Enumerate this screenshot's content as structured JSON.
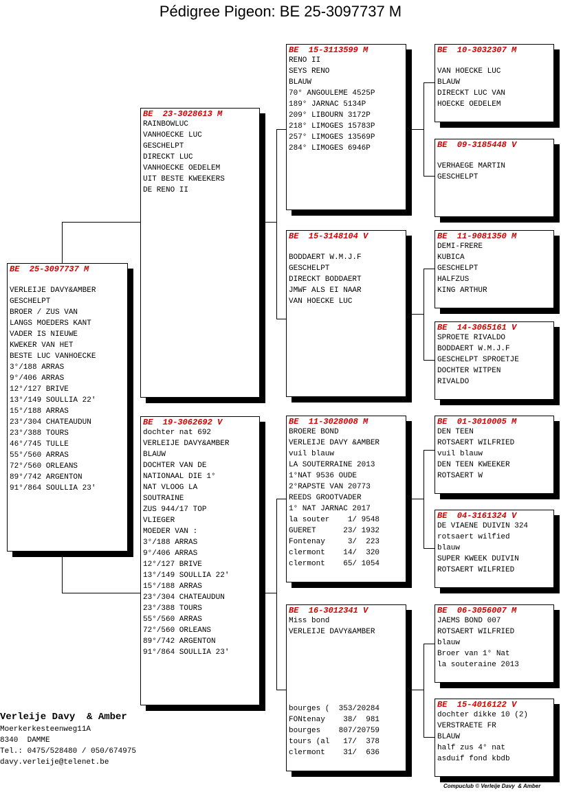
{
  "title": "Pédigree Pigeon: BE  25-3097737 M",
  "subject": {
    "code": "BE  25-3097737 M",
    "lines": [
      "",
      "VERLEIJE DAVY&AMBER",
      "GESCHELPT",
      "BROER / ZUS VAN",
      "LANGS MOEDERS KANT",
      "VADER IS NIEUWE",
      "KWEKER VAN HET",
      "BESTE LUC VANHOECKE",
      "3°/188 ARRAS",
      "9°/406 ARRAS",
      "12°/127 BRIVE",
      "13°/149 SOULLIA 22'",
      "15°/188 ARRAS",
      "23°/304 CHATEAUDUN",
      "23°/388 TOURS",
      "46°/745 TULLE",
      "55°/560 ARRAS",
      "72°/560 ORLEANS",
      "89°/742 ARGENTON",
      "91°/864 SOULLIA 23'"
    ]
  },
  "sire": {
    "code": "BE  23-3028613 M",
    "lines": [
      "RAINBOWLUC",
      "VANHOECKE LUC",
      "GESCHELPT",
      "DIRECKT LUC",
      "VANHOECKE OEDELEM",
      "UIT BESTE KWEEKERS",
      "DE RENO II"
    ]
  },
  "dam": {
    "code": "BE  19-3062692 V",
    "lines": [
      "dochter nat 692",
      "VERLEIJE DAVY&AMBER",
      "BLAUW",
      "DOCHTER VAN DE",
      "NATIONAAL DIE 1°",
      "NAT VLOOG LA",
      "SOUTRAINE",
      "ZUS 944/17 TOP",
      "VLIEGER",
      "MOEDER VAN :",
      "3°/188 ARRAS",
      "9°/406 ARRAS",
      "12°/127 BRIVE",
      "13°/149 SOULLIA 22'",
      "15°/188 ARRAS",
      "23°/304 CHATEAUDUN",
      "23°/388 TOURS",
      "55°/560 ARRAS",
      "72°/560 ORLEANS",
      "89°/742 ARGENTON",
      "91°/864 SOULLIA 23'"
    ]
  },
  "sire_sire": {
    "code": "BE  15-3113599 M",
    "lines": [
      "RENO II",
      "SEYS RENO",
      "BLAUW",
      "70° ANGOULEME 4525P",
      "189° JARNAC 5134P",
      "209° LIBOURN 3172P",
      "218° LIMOGES 15783P",
      "257° LIMOGES 13569P",
      "284° LIMOGES 6946P"
    ]
  },
  "sire_dam": {
    "code": "BE  15-3148104 V",
    "lines": [
      "",
      "BODDAERT W.M.J.F",
      "GESCHELPT",
      "DIRECKT BODDAERT",
      "JMWF ALS EI NAAR",
      "VAN HOECKE LUC"
    ]
  },
  "dam_sire": {
    "code": "BE  11-3028008 M",
    "lines": [
      "BROERE BOND",
      "VERLEIJE DAVY &AMBER",
      "vuil blauw",
      "LA SOUTERRAINE 2013",
      "1°NAT 9536 OUDE",
      "2°RAPSTE VAN 20773",
      "REEDS GROOTVADER",
      "1° NAT JARNAC 2017",
      "la souter    1/ 9548",
      "GUERET      23/ 1932",
      "Fontenay     3/  223",
      "clermont    14/  320",
      "clermont    65/ 1054"
    ]
  },
  "dam_dam": {
    "code": "BE  16-3012341 V",
    "lines": [
      "Miss bond",
      "VERLEIJE DAVY&AMBER",
      "",
      "",
      "",
      "",
      "",
      "",
      "bourges (  353/20284",
      "FONtenay    38/  981",
      "bourges    807/20759",
      "tours (al   17/  378",
      "clermont    31/  636"
    ]
  },
  "ss_sire": {
    "code": "BE  10-3032307 M",
    "lines": [
      "",
      "VAN HOECKE LUC",
      "BLAUW",
      "DIRECKT LUC VAN",
      "HOECKE OEDELEM"
    ]
  },
  "ss_dam": {
    "code": "BE  09-3185448 V",
    "lines": [
      "",
      "VERHAEGE MARTIN",
      "GESCHELPT"
    ]
  },
  "sd_sire": {
    "code": "BE  11-9081350 M",
    "lines": [
      "DEMI-FRERE",
      "KUBICA",
      "GESCHELPT",
      "HALFZUS",
      "KING ARTHUR"
    ]
  },
  "sd_dam": {
    "code": "BE  14-3065161 V",
    "lines": [
      "SPROETE RIVALDO",
      "BODDAERT W.M.J.F",
      "GESCHELPT SPROETJE",
      "DOCHTER WITPEN",
      "RIVALDO"
    ]
  },
  "ds_sire": {
    "code": "BE  01-3010005 M",
    "lines": [
      "DEN TEEN",
      "ROTSAERT WILFRIED",
      "vuil blauw",
      "DEN TEEN KWEEKER",
      "ROTSAERT W"
    ]
  },
  "ds_dam": {
    "code": "BE  04-3161324 V",
    "lines": [
      "DE VIAENE DUIVIN 324",
      "rotsaert wilfied",
      "blauw",
      "SUPER KWEEK DUIVIN",
      "ROTSAERT WILFRIED"
    ]
  },
  "dd_sire": {
    "code": "BE  06-3056007 M",
    "lines": [
      "JAEMS BOND 007",
      "ROTSAERT WILFRIED",
      "blauw",
      "Broer van 1° Nat",
      "la souteraine 2013"
    ]
  },
  "dd_dam": {
    "code": "BE  15-4016122 V",
    "lines": [
      "dochter dikke 10 (2)",
      "VERSTRAETE FR",
      "BLAUW",
      "half zus 4° nat",
      "asduif fond kbdb"
    ]
  },
  "breeder": {
    "name": "Verleije Davy  & Amber",
    "address": "Moerkerkesteenweg11A",
    "city": "8340  DAMME",
    "tel": "Tel.: 0475/528480 / 050/674975",
    "email": "davy.verleije@telenet.be"
  },
  "footer": "Compuclub © Verleije Davy  & Amber"
}
